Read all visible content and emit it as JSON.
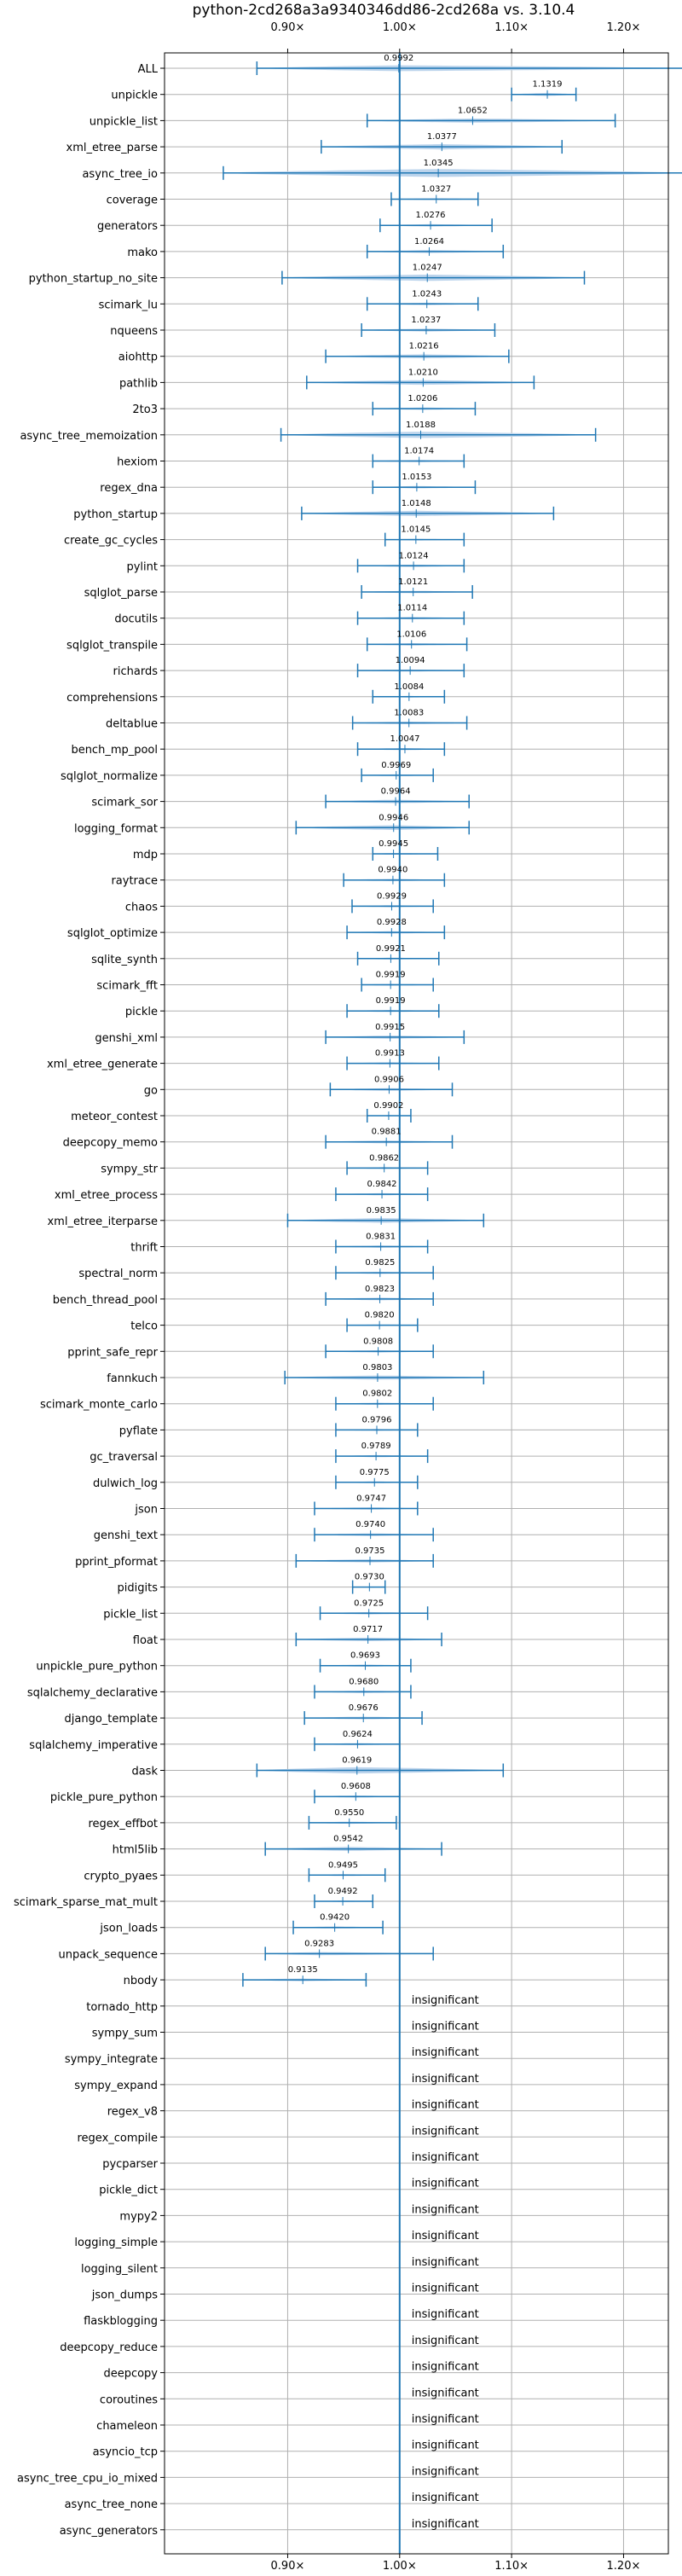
{
  "chart_data": {
    "type": "violin",
    "title": "python-2cd268a3a9340346dd86-2cd268a vs. 3.10.4",
    "xlim": [
      0.79,
      1.24
    ],
    "x_ticks": [
      0.9,
      1.0,
      1.1,
      1.2
    ],
    "x_tick_labels": [
      "0.90×",
      "1.00×",
      "1.10×",
      "1.20×"
    ],
    "reference_line": 1.0,
    "grid": true,
    "colors": {
      "violin": "#bcd4ec",
      "stroke": "#1f77b4",
      "grid": "#b0b0b0"
    },
    "insignificant_label": "insignificant",
    "benchmarks": [
      {
        "name": "ALL",
        "value": 0.9992,
        "label": "0.9992",
        "lo": 0.8725,
        "hi": 1.2575,
        "hw": 0.11
      },
      {
        "name": "unpickle",
        "value": 1.1319,
        "label": "1.1319",
        "lo": 1.1,
        "hi": 1.1575,
        "hw": 0.058
      },
      {
        "name": "unpickle_list",
        "value": 1.0652,
        "label": "1.0652",
        "lo": 0.971,
        "hi": 1.1925,
        "hw": 0.08
      },
      {
        "name": "xml_etree_parse",
        "value": 1.0377,
        "label": "1.0377",
        "lo": 0.93,
        "hi": 1.145,
        "hw": 0.1
      },
      {
        "name": "async_tree_io",
        "value": 1.0345,
        "label": "1.0345",
        "lo": 0.8425,
        "hi": 1.2575,
        "hw": 0.15
      },
      {
        "name": "coverage",
        "value": 1.0327,
        "label": "1.0327",
        "lo": 0.9925,
        "hi": 1.07,
        "hw": 0.035
      },
      {
        "name": "generators",
        "value": 1.0276,
        "label": "1.0276",
        "lo": 0.9825,
        "hi": 1.0825,
        "hw": 0.045
      },
      {
        "name": "mako",
        "value": 1.0264,
        "label": "1.0264",
        "lo": 0.971,
        "hi": 1.0925,
        "hw": 0.055
      },
      {
        "name": "python_startup_no_site",
        "value": 1.0247,
        "label": "1.0247",
        "lo": 0.895,
        "hi": 1.165,
        "hw": 0.12
      },
      {
        "name": "scimark_lu",
        "value": 1.0243,
        "label": "1.0243",
        "lo": 0.971,
        "hi": 1.07,
        "hw": 0.045
      },
      {
        "name": "nqueens",
        "value": 1.0237,
        "label": "1.0237",
        "lo": 0.966,
        "hi": 1.085,
        "hw": 0.055
      },
      {
        "name": "aiohttp",
        "value": 1.0216,
        "label": "1.0216",
        "lo": 0.934,
        "hi": 1.0975,
        "hw": 0.075
      },
      {
        "name": "pathlib",
        "value": 1.021,
        "label": "1.0210",
        "lo": 0.917,
        "hi": 1.12,
        "hw": 0.09
      },
      {
        "name": "2to3",
        "value": 1.0206,
        "label": "1.0206",
        "lo": 0.976,
        "hi": 1.0675,
        "hw": 0.045
      },
      {
        "name": "async_tree_memoization",
        "value": 1.0188,
        "label": "1.0188",
        "lo": 0.894,
        "hi": 1.175,
        "hw": 0.12
      },
      {
        "name": "hexiom",
        "value": 1.0174,
        "label": "1.0174",
        "lo": 0.976,
        "hi": 1.0575,
        "hw": 0.04
      },
      {
        "name": "regex_dna",
        "value": 1.0153,
        "label": "1.0153",
        "lo": 0.976,
        "hi": 1.0675,
        "hw": 0.045
      },
      {
        "name": "python_startup",
        "value": 1.0148,
        "label": "1.0148",
        "lo": 0.9125,
        "hi": 1.1375,
        "hw": 0.1
      },
      {
        "name": "create_gc_cycles",
        "value": 1.0145,
        "label": "1.0145",
        "lo": 0.987,
        "hi": 1.0575,
        "hw": 0.035
      },
      {
        "name": "pylint",
        "value": 1.0124,
        "label": "1.0124",
        "lo": 0.9625,
        "hi": 1.0575,
        "hw": 0.045
      },
      {
        "name": "sqlglot_parse",
        "value": 1.0121,
        "label": "1.0121",
        "lo": 0.966,
        "hi": 1.065,
        "hw": 0.045
      },
      {
        "name": "docutils",
        "value": 1.0114,
        "label": "1.0114",
        "lo": 0.9625,
        "hi": 1.0575,
        "hw": 0.045
      },
      {
        "name": "sqlglot_transpile",
        "value": 1.0106,
        "label": "1.0106",
        "lo": 0.971,
        "hi": 1.06,
        "hw": 0.045
      },
      {
        "name": "richards",
        "value": 1.0094,
        "label": "1.0094",
        "lo": 0.9625,
        "hi": 1.0575,
        "hw": 0.04
      },
      {
        "name": "comprehensions",
        "value": 1.0084,
        "label": "1.0084",
        "lo": 0.976,
        "hi": 1.04,
        "hw": 0.03
      },
      {
        "name": "deltablue",
        "value": 1.0083,
        "label": "1.0083",
        "lo": 0.958,
        "hi": 1.06,
        "hw": 0.05
      },
      {
        "name": "bench_mp_pool",
        "value": 1.0047,
        "label": "1.0047",
        "lo": 0.9625,
        "hi": 1.04,
        "hw": 0.04
      },
      {
        "name": "sqlglot_normalize",
        "value": 0.9969,
        "label": "0.9969",
        "lo": 0.966,
        "hi": 1.03,
        "hw": 0.035
      },
      {
        "name": "scimark_sor",
        "value": 0.9964,
        "label": "0.9964",
        "lo": 0.934,
        "hi": 1.062,
        "hw": 0.065
      },
      {
        "name": "logging_format",
        "value": 0.9946,
        "label": "0.9946",
        "lo": 0.9075,
        "hi": 1.062,
        "hw": 0.09
      },
      {
        "name": "mdp",
        "value": 0.9945,
        "label": "0.9945",
        "lo": 0.976,
        "hi": 1.034,
        "hw": 0.03
      },
      {
        "name": "raytrace",
        "value": 0.994,
        "label": "0.9940",
        "lo": 0.95,
        "hi": 1.04,
        "hw": 0.045
      },
      {
        "name": "chaos",
        "value": 0.9929,
        "label": "0.9929",
        "lo": 0.9575,
        "hi": 1.03,
        "hw": 0.04
      },
      {
        "name": "sqlglot_optimize",
        "value": 0.9928,
        "label": "0.9928",
        "lo": 0.953,
        "hi": 1.04,
        "hw": 0.045
      },
      {
        "name": "sqlite_synth",
        "value": 0.9921,
        "label": "0.9921",
        "lo": 0.9625,
        "hi": 1.035,
        "hw": 0.035
      },
      {
        "name": "scimark_fft",
        "value": 0.9919,
        "label": "0.9919",
        "lo": 0.966,
        "hi": 1.03,
        "hw": 0.035
      },
      {
        "name": "pickle",
        "value": 0.9919,
        "label": "0.9919",
        "lo": 0.953,
        "hi": 1.035,
        "hw": 0.04
      },
      {
        "name": "genshi_xml",
        "value": 0.9915,
        "label": "0.9915",
        "lo": 0.934,
        "hi": 1.0575,
        "hw": 0.06
      },
      {
        "name": "xml_etree_generate",
        "value": 0.9913,
        "label": "0.9913",
        "lo": 0.953,
        "hi": 1.035,
        "hw": 0.04
      },
      {
        "name": "go",
        "value": 0.9906,
        "label": "0.9906",
        "lo": 0.938,
        "hi": 1.047,
        "hw": 0.05
      },
      {
        "name": "meteor_contest",
        "value": 0.9902,
        "label": "0.9902",
        "lo": 0.971,
        "hi": 1.01,
        "hw": 0.02
      },
      {
        "name": "deepcopy_memo",
        "value": 0.9881,
        "label": "0.9881",
        "lo": 0.934,
        "hi": 1.047,
        "hw": 0.055
      },
      {
        "name": "sympy_str",
        "value": 0.9862,
        "label": "0.9862",
        "lo": 0.953,
        "hi": 1.025,
        "hw": 0.035
      },
      {
        "name": "xml_etree_process",
        "value": 0.9842,
        "label": "0.9842",
        "lo": 0.943,
        "hi": 1.025,
        "hw": 0.04
      },
      {
        "name": "xml_etree_iterparse",
        "value": 0.9835,
        "label": "0.9835",
        "lo": 0.9,
        "hi": 1.075,
        "hw": 0.09
      },
      {
        "name": "thrift",
        "value": 0.9831,
        "label": "0.9831",
        "lo": 0.943,
        "hi": 1.025,
        "hw": 0.04
      },
      {
        "name": "spectral_norm",
        "value": 0.9825,
        "label": "0.9825",
        "lo": 0.943,
        "hi": 1.03,
        "hw": 0.04
      },
      {
        "name": "bench_thread_pool",
        "value": 0.9823,
        "label": "0.9823",
        "lo": 0.934,
        "hi": 1.03,
        "hw": 0.05
      },
      {
        "name": "telco",
        "value": 0.982,
        "label": "0.9820",
        "lo": 0.953,
        "hi": 1.016,
        "hw": 0.03
      },
      {
        "name": "pprint_safe_repr",
        "value": 0.9808,
        "label": "0.9808",
        "lo": 0.934,
        "hi": 1.03,
        "hw": 0.045
      },
      {
        "name": "fannkuch",
        "value": 0.9803,
        "label": "0.9803",
        "lo": 0.8975,
        "hi": 1.075,
        "hw": 0.08
      },
      {
        "name": "scimark_monte_carlo",
        "value": 0.9802,
        "label": "0.9802",
        "lo": 0.943,
        "hi": 1.03,
        "hw": 0.04
      },
      {
        "name": "pyflate",
        "value": 0.9796,
        "label": "0.9796",
        "lo": 0.943,
        "hi": 1.016,
        "hw": 0.035
      },
      {
        "name": "gc_traversal",
        "value": 0.9789,
        "label": "0.9789",
        "lo": 0.943,
        "hi": 1.025,
        "hw": 0.04
      },
      {
        "name": "dulwich_log",
        "value": 0.9775,
        "label": "0.9775",
        "lo": 0.943,
        "hi": 1.016,
        "hw": 0.035
      },
      {
        "name": "json",
        "value": 0.9747,
        "label": "0.9747",
        "lo": 0.924,
        "hi": 1.016,
        "hw": 0.045
      },
      {
        "name": "genshi_text",
        "value": 0.974,
        "label": "0.9740",
        "lo": 0.924,
        "hi": 1.03,
        "hw": 0.05
      },
      {
        "name": "pprint_pformat",
        "value": 0.9735,
        "label": "0.9735",
        "lo": 0.9075,
        "hi": 1.03,
        "hw": 0.06
      },
      {
        "name": "pidigits",
        "value": 0.973,
        "label": "0.9730",
        "lo": 0.958,
        "hi": 0.987,
        "hw": 0.02
      },
      {
        "name": "pickle_list",
        "value": 0.9725,
        "label": "0.9725",
        "lo": 0.929,
        "hi": 1.025,
        "hw": 0.045
      },
      {
        "name": "float",
        "value": 0.9717,
        "label": "0.9717",
        "lo": 0.9075,
        "hi": 1.0375,
        "hw": 0.065
      },
      {
        "name": "unpickle_pure_python",
        "value": 0.9693,
        "label": "0.9693",
        "lo": 0.929,
        "hi": 1.01,
        "hw": 0.04
      },
      {
        "name": "sqlalchemy_declarative",
        "value": 0.968,
        "label": "0.9680",
        "lo": 0.924,
        "hi": 1.01,
        "hw": 0.045
      },
      {
        "name": "django_template",
        "value": 0.9676,
        "label": "0.9676",
        "lo": 0.915,
        "hi": 1.02,
        "hw": 0.05
      },
      {
        "name": "sqlalchemy_imperative",
        "value": 0.9624,
        "label": "0.9624",
        "lo": 0.924,
        "hi": 1.0,
        "hw": 0.04
      },
      {
        "name": "dask",
        "value": 0.9619,
        "label": "0.9619",
        "lo": 0.8725,
        "hi": 1.0925,
        "hw": 0.12
      },
      {
        "name": "pickle_pure_python",
        "value": 0.9608,
        "label": "0.9608",
        "lo": 0.924,
        "hi": 1.0,
        "hw": 0.04
      },
      {
        "name": "regex_effbot",
        "value": 0.955,
        "label": "0.9550",
        "lo": 0.919,
        "hi": 0.997,
        "hw": 0.04
      },
      {
        "name": "html5lib",
        "value": 0.9542,
        "label": "0.9542",
        "lo": 0.88,
        "hi": 1.0375,
        "hw": 0.075
      },
      {
        "name": "crypto_pyaes",
        "value": 0.9495,
        "label": "0.9495",
        "lo": 0.919,
        "hi": 0.987,
        "hw": 0.035
      },
      {
        "name": "scimark_sparse_mat_mult",
        "value": 0.9492,
        "label": "0.9492",
        "lo": 0.924,
        "hi": 0.976,
        "hw": 0.025
      },
      {
        "name": "json_loads",
        "value": 0.942,
        "label": "0.9420",
        "lo": 0.905,
        "hi": 0.985,
        "hw": 0.04
      },
      {
        "name": "unpack_sequence",
        "value": 0.9283,
        "label": "0.9283",
        "lo": 0.88,
        "hi": 1.03,
        "hw": 0.06
      },
      {
        "name": "nbody",
        "value": 0.9135,
        "label": "0.9135",
        "lo": 0.86,
        "hi": 0.97,
        "hw": 0.05
      },
      {
        "name": "tornado_http",
        "insignificant": true
      },
      {
        "name": "sympy_sum",
        "insignificant": true
      },
      {
        "name": "sympy_integrate",
        "insignificant": true
      },
      {
        "name": "sympy_expand",
        "insignificant": true
      },
      {
        "name": "regex_v8",
        "insignificant": true
      },
      {
        "name": "regex_compile",
        "insignificant": true
      },
      {
        "name": "pycparser",
        "insignificant": true
      },
      {
        "name": "pickle_dict",
        "insignificant": true
      },
      {
        "name": "mypy2",
        "insignificant": true
      },
      {
        "name": "logging_simple",
        "insignificant": true
      },
      {
        "name": "logging_silent",
        "insignificant": true
      },
      {
        "name": "json_dumps",
        "insignificant": true
      },
      {
        "name": "flaskblogging",
        "insignificant": true
      },
      {
        "name": "deepcopy_reduce",
        "insignificant": true
      },
      {
        "name": "deepcopy",
        "insignificant": true
      },
      {
        "name": "coroutines",
        "insignificant": true
      },
      {
        "name": "chameleon",
        "insignificant": true
      },
      {
        "name": "asyncio_tcp",
        "insignificant": true
      },
      {
        "name": "async_tree_cpu_io_mixed",
        "insignificant": true
      },
      {
        "name": "async_tree_none",
        "insignificant": true
      },
      {
        "name": "async_generators",
        "insignificant": true
      }
    ]
  }
}
